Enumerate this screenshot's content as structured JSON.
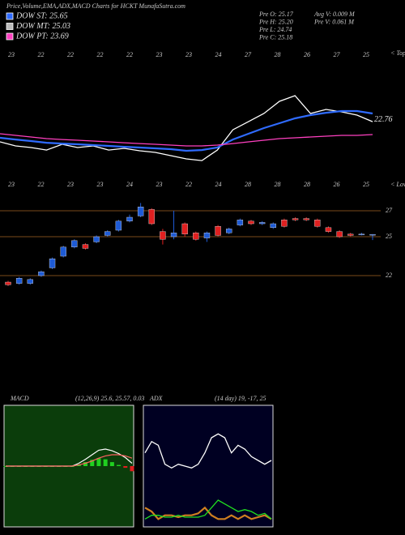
{
  "header": {
    "title": "Price,Volume,EMA,ADX,MACD Charts for HCKT MunafaSutra.com",
    "legend": [
      {
        "label": "DOW ST: 25.65",
        "color": "#2f6bff"
      },
      {
        "label": "DOW MT: 25.03",
        "color": "#bbbbbb"
      },
      {
        "label": "DOW PT: 23.69",
        "color": "#ff40c0"
      }
    ],
    "info": [
      "Pre  O: 25.17",
      "Pre  H: 25.20",
      "Pre  L: 24.74",
      "Pre  C: 25.18",
      "Avg V: 0.009 M",
      "Pre  V: 0.061 M"
    ]
  },
  "chart_data": [
    {
      "type": "line",
      "ylim": [
        16,
        30
      ],
      "last_value": 22.76,
      "tops_label": "< Tops",
      "lows_label": "< Lows",
      "top_labels": [
        "23",
        "22",
        "22",
        "22",
        "22",
        "23",
        "23",
        "24",
        "27",
        "28",
        "26",
        "27",
        "25"
      ],
      "bottom_labels": [
        "23",
        "22",
        "23",
        "23",
        "24",
        "23",
        "22",
        "24",
        "28",
        "28",
        "28",
        "26",
        "25"
      ],
      "series": [
        {
          "name": "Price",
          "color": "#ffffff",
          "values": [
            20.53,
            20.12,
            19.95,
            19.7,
            20.28,
            19.95,
            20.12,
            19.7,
            19.87,
            19.62,
            19.46,
            19.13,
            18.8,
            18.63,
            19.7,
            21.76,
            22.58,
            23.41,
            24.65,
            25.22,
            23.41,
            23.82,
            23.58,
            23.25,
            22.58
          ]
        },
        {
          "name": "EMA",
          "color": "#2f6bff",
          "values": [
            20.94,
            20.77,
            20.61,
            20.44,
            20.36,
            20.28,
            20.2,
            20.12,
            20.03,
            19.95,
            19.87,
            19.79,
            19.62,
            19.7,
            19.95,
            20.77,
            21.35,
            21.93,
            22.42,
            22.92,
            23.25,
            23.49,
            23.66,
            23.66,
            23.41
          ]
        },
        {
          "name": "EMA long",
          "color": "#ff40c0",
          "values": [
            21.35,
            21.19,
            21.02,
            20.86,
            20.77,
            20.69,
            20.61,
            20.53,
            20.44,
            20.36,
            20.28,
            20.2,
            20.12,
            20.12,
            20.2,
            20.36,
            20.53,
            20.69,
            20.86,
            20.94,
            21.02,
            21.11,
            21.19,
            21.19,
            21.27
          ]
        }
      ]
    },
    {
      "type": "candlestick",
      "ylim": [
        20.44,
        28.25
      ],
      "yticks": [
        22,
        25,
        27
      ],
      "up_color": "#1e5bd6",
      "down_color": "#e02020",
      "grid_color": "#7a4a1a",
      "open": [
        21.5,
        21.4,
        21.4,
        22.0,
        22.6,
        23.5,
        24.2,
        24.4,
        24.6,
        25.1,
        25.5,
        26.2,
        26.6,
        27.1,
        25.4,
        25.0,
        26.0,
        25.3,
        24.9,
        25.8,
        25.3,
        25.9,
        26.2,
        26.0,
        25.7,
        26.3,
        26.4,
        26.4,
        26.3,
        25.7,
        25.4,
        25.2,
        25.2,
        25.17
      ],
      "close": [
        21.3,
        21.8,
        21.7,
        22.3,
        23.3,
        24.2,
        24.7,
        24.1,
        25.0,
        25.4,
        26.2,
        26.5,
        27.3,
        26.0,
        24.8,
        25.3,
        25.2,
        24.8,
        25.3,
        25.1,
        25.6,
        26.3,
        26.0,
        26.1,
        26.0,
        25.8,
        26.3,
        26.3,
        25.8,
        25.4,
        25.0,
        25.1,
        25.2,
        25.18
      ],
      "high": [
        21.6,
        21.9,
        21.8,
        22.4,
        23.4,
        24.3,
        24.8,
        24.5,
        25.1,
        25.5,
        26.3,
        26.7,
        27.6,
        27.2,
        25.6,
        27.0,
        26.1,
        25.4,
        25.4,
        25.9,
        25.7,
        26.4,
        26.3,
        26.2,
        26.1,
        26.4,
        26.5,
        26.5,
        26.4,
        25.8,
        25.5,
        25.3,
        25.3,
        25.2
      ],
      "low": [
        21.2,
        21.3,
        21.3,
        21.9,
        22.5,
        23.4,
        24.1,
        24.0,
        24.5,
        25.0,
        25.4,
        26.1,
        26.5,
        25.9,
        24.4,
        24.8,
        25.0,
        24.7,
        24.6,
        25.0,
        25.2,
        25.8,
        25.9,
        25.9,
        25.6,
        25.7,
        26.2,
        26.2,
        25.7,
        25.3,
        24.9,
        25.0,
        25.1,
        24.74
      ]
    },
    {
      "type": "macd",
      "title": "MACD",
      "subtitle": "(12,26,9) 25.6, 25.57, 0.03",
      "ylim": [
        -1,
        1
      ],
      "background": "#0b3d0b",
      "series": [
        {
          "name": "MACD",
          "color": "#ffffff",
          "values": [
            0,
            0,
            0,
            0,
            0,
            0,
            0,
            0,
            0,
            0,
            0,
            0.05,
            0.12,
            0.2,
            0.28,
            0.3,
            0.27,
            0.22,
            0.15,
            0.05
          ]
        },
        {
          "name": "Signal",
          "color": "#ff6060",
          "values": [
            0,
            0,
            0,
            0,
            0,
            0,
            0,
            0,
            0,
            0,
            0,
            0.02,
            0.05,
            0.09,
            0.14,
            0.18,
            0.2,
            0.2,
            0.18,
            0.14
          ]
        },
        {
          "name": "Histogram",
          "color": "#20d020",
          "values": [
            0,
            0,
            0,
            0,
            0,
            0,
            0,
            0,
            0,
            0,
            0,
            0.03,
            0.07,
            0.11,
            0.14,
            0.12,
            0.07,
            0.02,
            -0.03,
            -0.09
          ]
        }
      ]
    },
    {
      "type": "adx",
      "title": "ADX",
      "subtitle": "(14 day) 19, -17, 25",
      "ylim": [
        0,
        60
      ],
      "background": "#000022",
      "series": [
        {
          "name": "ADX",
          "color": "#ffffff",
          "values": [
            37,
            43,
            41,
            31,
            29,
            31,
            30,
            29,
            31,
            37,
            45,
            47,
            45,
            37,
            41,
            39,
            35,
            33,
            31,
            33
          ]
        },
        {
          "name": "-DI",
          "color": "#d08020",
          "values": [
            8,
            6,
            2,
            4,
            4,
            3,
            4,
            4,
            5,
            8,
            4,
            2,
            2,
            4,
            2,
            4,
            2,
            3,
            4,
            2
          ]
        },
        {
          "name": "+DI",
          "color": "#20e020",
          "values": [
            2,
            4,
            4,
            3,
            3,
            4,
            3,
            3,
            3,
            4,
            8,
            12,
            10,
            8,
            6,
            7,
            6,
            4,
            5,
            2
          ]
        }
      ]
    }
  ]
}
